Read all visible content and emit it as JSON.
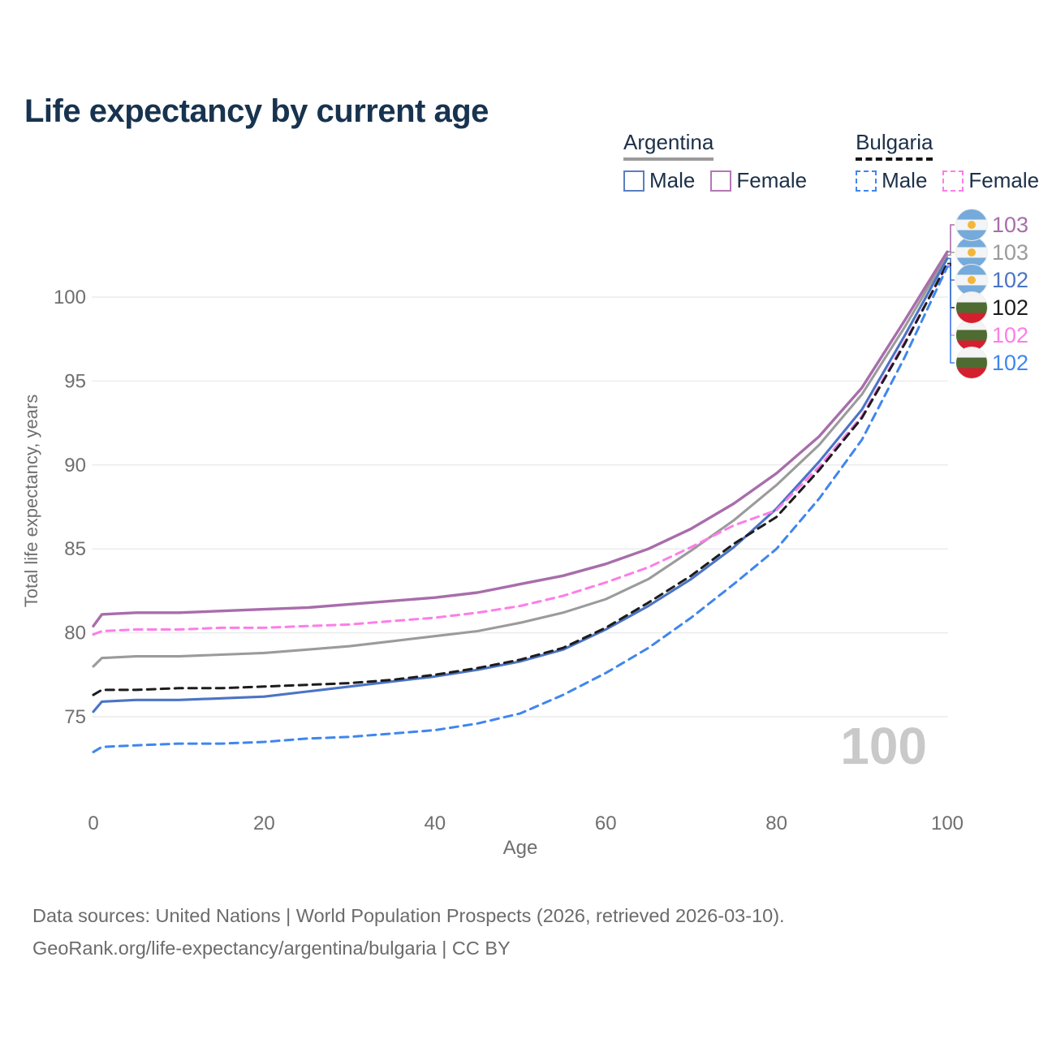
{
  "title": "Life expectancy by current age",
  "legend": {
    "groups": [
      {
        "country": "Argentina",
        "line_style": "solid",
        "items": [
          {
            "label": "Male",
            "color": "#5a7fc0"
          },
          {
            "label": "Female",
            "color": "#b478b4"
          }
        ]
      },
      {
        "country": "Bulgaria",
        "line_style": "dashed",
        "items": [
          {
            "label": "Male",
            "color": "#3f86ef"
          },
          {
            "label": "Female",
            "color": "#fd7de8"
          }
        ]
      }
    ]
  },
  "chart_data": {
    "type": "line",
    "title": "Life expectancy by current age",
    "xlabel": "Age",
    "ylabel": "Total life expectancy, years",
    "x_ticks": [
      0,
      20,
      40,
      60,
      80,
      100
    ],
    "y_ticks": [
      75,
      80,
      85,
      90,
      95,
      100
    ],
    "xlim": [
      0,
      100
    ],
    "ylim": [
      71,
      104.5
    ],
    "grid": "horizontal",
    "legend_position": "top-right",
    "watermark": "100",
    "x": [
      0,
      1,
      5,
      10,
      15,
      20,
      25,
      30,
      35,
      40,
      45,
      50,
      55,
      60,
      65,
      70,
      75,
      80,
      85,
      90,
      95,
      100
    ],
    "series": [
      {
        "id": "argentina-total",
        "name": "Argentina",
        "country": "Argentina",
        "sex": "Total",
        "color": "#9b9b9b",
        "dash": false,
        "width": 3.1,
        "values": [
          78.0,
          78.5,
          78.6,
          78.6,
          78.7,
          78.8,
          79.0,
          79.2,
          79.5,
          79.8,
          80.1,
          80.6,
          81.2,
          82.0,
          83.2,
          84.9,
          86.7,
          88.8,
          91.2,
          94.2,
          98.2,
          102.5
        ],
        "end_label": "103",
        "end_row": 1,
        "flag": "argentina"
      },
      {
        "id": "argentina-female",
        "name": "Argentina Female",
        "country": "Argentina",
        "sex": "Female",
        "color": "#a86dab",
        "dash": false,
        "width": 3.4,
        "values": [
          80.4,
          81.1,
          81.2,
          81.2,
          81.3,
          81.4,
          81.5,
          81.7,
          81.9,
          82.1,
          82.4,
          82.9,
          83.4,
          84.1,
          85.0,
          86.2,
          87.7,
          89.5,
          91.7,
          94.6,
          98.6,
          102.7
        ],
        "end_label": "103",
        "end_row": 0,
        "flag": "argentina"
      },
      {
        "id": "argentina-male",
        "name": "Argentina Male",
        "country": "Argentina",
        "sex": "Male",
        "color": "#4b74c4",
        "dash": false,
        "width": 3.1,
        "values": [
          75.3,
          75.9,
          76.0,
          76.0,
          76.1,
          76.2,
          76.5,
          76.8,
          77.1,
          77.4,
          77.8,
          78.3,
          79.0,
          80.2,
          81.6,
          83.2,
          85.1,
          87.4,
          90.2,
          93.3,
          97.7,
          102.3
        ],
        "end_label": "102",
        "end_row": 2,
        "flag": "argentina"
      },
      {
        "id": "bulgaria-female",
        "name": "Bulgaria Female",
        "country": "Bulgaria",
        "sex": "Female",
        "color": "#fd7de8",
        "dash": true,
        "width": 3.0,
        "values": [
          79.9,
          80.1,
          80.2,
          80.2,
          80.3,
          80.3,
          80.4,
          80.5,
          80.7,
          80.9,
          81.2,
          81.6,
          82.2,
          83.0,
          83.9,
          85.1,
          86.4,
          87.3,
          89.9,
          92.9,
          97.3,
          101.9
        ],
        "end_label": "102",
        "end_row": 4,
        "flag": "bulgaria"
      },
      {
        "id": "bulgaria-total",
        "name": "Bulgaria",
        "country": "Bulgaria",
        "sex": "Total",
        "color": "#1c1c1c",
        "dash": true,
        "width": 3.0,
        "values": [
          76.3,
          76.6,
          76.6,
          76.7,
          76.7,
          76.8,
          76.9,
          77.0,
          77.2,
          77.5,
          77.9,
          78.4,
          79.1,
          80.3,
          81.8,
          83.4,
          85.3,
          86.9,
          89.7,
          92.8,
          97.2,
          102.0
        ],
        "end_label": "102",
        "end_row": 3,
        "flag": "bulgaria"
      },
      {
        "id": "bulgaria-male",
        "name": "Bulgaria Male",
        "country": "Bulgaria",
        "sex": "Male",
        "color": "#3f86ef",
        "dash": true,
        "width": 3.0,
        "values": [
          72.9,
          73.2,
          73.3,
          73.4,
          73.4,
          73.5,
          73.7,
          73.8,
          74.0,
          74.2,
          74.6,
          75.2,
          76.3,
          77.6,
          79.1,
          80.9,
          82.9,
          85.0,
          88.0,
          91.5,
          96.4,
          101.8
        ],
        "end_label": "102",
        "end_row": 5,
        "flag": "bulgaria"
      }
    ]
  },
  "flags": {
    "argentina": {
      "band_top": "#75aadb",
      "band_mid": "#f3f4f5",
      "band_bottom": "#75aadb",
      "sun": "#f2b63c"
    },
    "bulgaria": {
      "band_top": "#f4f4f4",
      "band_mid": "#4e6b31",
      "band_bottom": "#d51f2e"
    }
  },
  "footer": {
    "line1": "Data sources: United Nations | World Population Prospects (2026, retrieved 2026-03-10).",
    "line2": "GeoRank.org/life-expectancy/argentina/bulgaria | CC BY"
  }
}
